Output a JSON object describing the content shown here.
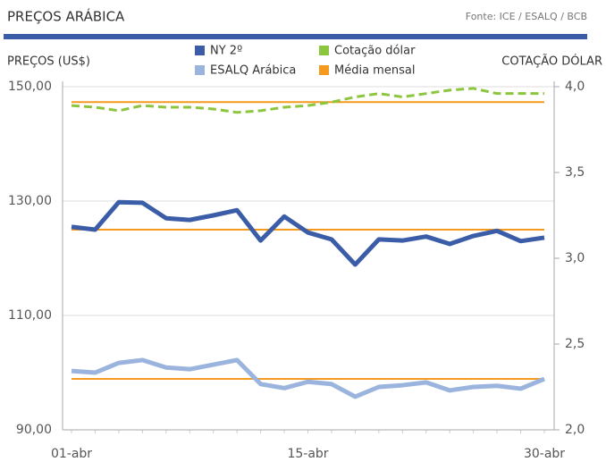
{
  "chart_data": {
    "type": "line",
    "title": "PREÇOS ARÁBICA",
    "source": "Fonte: ICE / ESALQ / BCB",
    "y_label": "PREÇOS (US$)",
    "y2_label": "COTAÇÃO DÓLAR",
    "categories": [
      "01-abr",
      null,
      null,
      null,
      null,
      null,
      null,
      null,
      null,
      null,
      "15-abr",
      null,
      null,
      null,
      null,
      null,
      null,
      null,
      null,
      null,
      "30-abr"
    ],
    "series": [
      {
        "name": "NY 2º",
        "color": "#3b5da8",
        "axis": "y",
        "mean": 125.0,
        "values": [
          125.5,
          125.0,
          129.8,
          129.7,
          127.0,
          126.7,
          127.5,
          128.4,
          123.1,
          127.3,
          124.5,
          123.3,
          118.9,
          123.3,
          123.1,
          123.8,
          122.5,
          123.9,
          124.8,
          123.0,
          123.6
        ]
      },
      {
        "name": "Cotação dólar",
        "color": "#8cc63f",
        "axis": "y2",
        "style": "dashed",
        "mean": 3.91,
        "values": [
          3.89,
          3.88,
          3.86,
          3.89,
          3.88,
          3.88,
          3.87,
          3.85,
          3.86,
          3.88,
          3.89,
          3.91,
          3.94,
          3.96,
          3.94,
          3.96,
          3.98,
          3.99,
          3.96,
          3.96,
          3.96
        ]
      },
      {
        "name": "ESALQ Arábica",
        "color": "#9bb4de",
        "axis": "y",
        "mean": 98.9,
        "values": [
          100.3,
          100.0,
          101.7,
          102.2,
          100.9,
          100.6,
          101.4,
          102.2,
          98.0,
          97.3,
          98.4,
          98.0,
          95.8,
          97.5,
          97.8,
          98.3,
          96.9,
          97.5,
          97.7,
          97.2,
          98.9
        ]
      }
    ],
    "mean_line": {
      "name": "Média mensal",
      "color": "#f39a1f"
    },
    "ylim": [
      90,
      150
    ],
    "yticks": [
      {
        "value": 90,
        "label": "90,00"
      },
      {
        "value": 110,
        "label": "110,00"
      },
      {
        "value": 130,
        "label": "130,00"
      },
      {
        "value": 150,
        "label": "150,00"
      }
    ],
    "y2lim": [
      2.0,
      4.0
    ],
    "y2ticks": [
      {
        "value": 2.0,
        "label": "2,0"
      },
      {
        "value": 2.5,
        "label": "2,5"
      },
      {
        "value": 3.0,
        "label": "3,0"
      },
      {
        "value": 3.5,
        "label": "3,5"
      },
      {
        "value": 4.0,
        "label": "4,0"
      }
    ],
    "grid": true
  }
}
